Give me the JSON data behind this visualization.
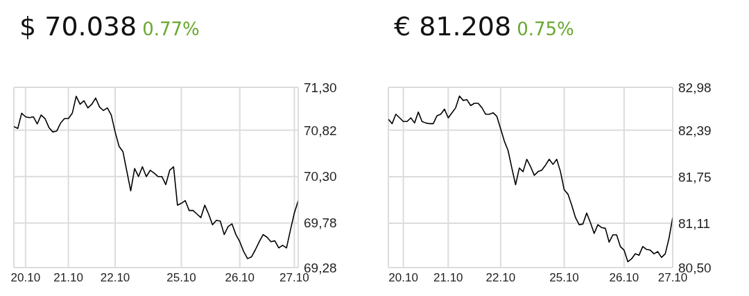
{
  "chart_data": [
    {
      "type": "line",
      "title": "$ 70.038",
      "subtitle": "0.77%",
      "marker": "none",
      "grid": true,
      "ylim": [
        69.28,
        71.3
      ],
      "yticks": [
        {
          "value": 69.28,
          "label": "69,28"
        },
        {
          "value": 69.78,
          "label": "69,78"
        },
        {
          "value": 70.3,
          "label": "70,30"
        },
        {
          "value": 70.82,
          "label": "70,82"
        },
        {
          "value": 71.3,
          "label": "71,30"
        }
      ],
      "categories": [
        null,
        null,
        null,
        "20.10",
        null,
        null,
        null,
        null,
        null,
        null,
        null,
        null,
        null,
        null,
        "21.10",
        null,
        null,
        null,
        null,
        null,
        null,
        null,
        null,
        null,
        null,
        null,
        "22.10",
        null,
        null,
        null,
        null,
        null,
        null,
        null,
        null,
        null,
        null,
        null,
        null,
        null,
        null,
        null,
        null,
        "25.10",
        null,
        null,
        null,
        null,
        null,
        null,
        null,
        null,
        null,
        null,
        null,
        null,
        null,
        null,
        "26.10",
        null,
        null,
        null,
        null,
        null,
        null,
        null,
        null,
        null,
        null,
        null,
        null,
        null,
        "27.10",
        null
      ],
      "series": [
        {
          "color": "#000000",
          "values": [
            70.86,
            70.84,
            71.01,
            70.97,
            70.96,
            70.97,
            70.89,
            70.99,
            70.95,
            70.85,
            70.8,
            70.81,
            70.9,
            70.95,
            70.95,
            71.01,
            71.2,
            71.11,
            71.15,
            71.07,
            71.11,
            71.18,
            71.08,
            71.04,
            71.07,
            70.99,
            70.8,
            70.64,
            70.58,
            70.36,
            70.14,
            70.39,
            70.3,
            70.41,
            70.3,
            70.37,
            70.34,
            70.3,
            70.3,
            70.21,
            70.37,
            70.41,
            69.98,
            70.0,
            70.03,
            69.92,
            69.92,
            69.88,
            69.84,
            69.98,
            69.88,
            69.76,
            69.81,
            69.8,
            69.65,
            69.74,
            69.77,
            69.65,
            69.57,
            69.46,
            69.38,
            69.4,
            69.48,
            69.57,
            69.65,
            69.62,
            69.57,
            69.58,
            69.5,
            69.53,
            69.5,
            69.7,
            69.89,
            70.03
          ]
        }
      ]
    },
    {
      "type": "line",
      "title": "€ 81.208",
      "subtitle": "0.75%",
      "marker": "none",
      "grid": true,
      "ylim": [
        80.5,
        82.98
      ],
      "yticks": [
        {
          "value": 80.5,
          "label": "80,50"
        },
        {
          "value": 81.11,
          "label": "81,11"
        },
        {
          "value": 81.75,
          "label": "81,75"
        },
        {
          "value": 82.39,
          "label": "82,39"
        },
        {
          "value": 82.98,
          "label": "82,98"
        }
      ],
      "categories": [
        null,
        null,
        null,
        null,
        "20.10",
        null,
        null,
        null,
        null,
        null,
        null,
        null,
        null,
        null,
        null,
        null,
        "21.10",
        null,
        null,
        null,
        null,
        null,
        null,
        null,
        null,
        null,
        null,
        null,
        null,
        null,
        "22.10",
        null,
        null,
        null,
        null,
        null,
        null,
        null,
        null,
        null,
        null,
        null,
        null,
        null,
        null,
        null,
        null,
        "25.10",
        null,
        null,
        null,
        null,
        null,
        null,
        null,
        null,
        null,
        null,
        null,
        null,
        null,
        null,
        null,
        "26.10",
        null,
        null,
        null,
        null,
        null,
        null,
        null,
        null,
        null,
        null,
        null,
        null,
        "27.10"
      ],
      "series": [
        {
          "color": "#000000",
          "values": [
            82.54,
            82.48,
            82.61,
            82.56,
            82.51,
            82.51,
            82.56,
            82.49,
            82.64,
            82.51,
            82.49,
            82.48,
            82.48,
            82.59,
            82.61,
            82.68,
            82.56,
            82.63,
            82.7,
            82.86,
            82.8,
            82.81,
            82.73,
            82.76,
            82.76,
            82.7,
            82.61,
            82.61,
            82.63,
            82.58,
            82.41,
            82.24,
            82.11,
            81.87,
            81.64,
            81.87,
            81.82,
            81.99,
            81.89,
            81.77,
            81.82,
            81.84,
            81.91,
            81.99,
            81.92,
            81.99,
            81.82,
            81.57,
            81.51,
            81.36,
            81.19,
            81.09,
            81.1,
            81.25,
            81.12,
            80.97,
            81.09,
            81.05,
            81.04,
            80.85,
            80.95,
            80.95,
            80.79,
            80.74,
            80.58,
            80.62,
            80.69,
            80.67,
            80.79,
            80.75,
            80.74,
            80.69,
            80.72,
            80.64,
            80.69,
            80.9,
            81.19
          ]
        }
      ]
    }
  ]
}
